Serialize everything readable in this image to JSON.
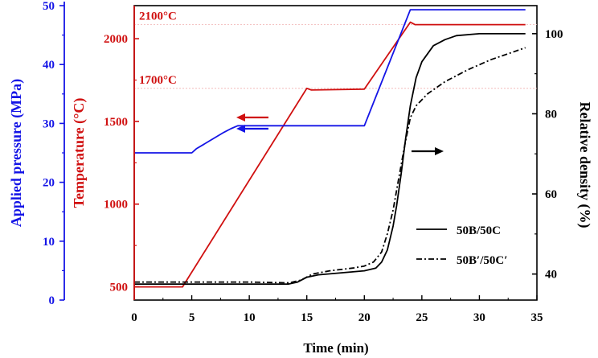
{
  "chart_data": {
    "type": "line",
    "xlabel": "Time (min)",
    "xlim": [
      0,
      35
    ],
    "xticks": [
      "0",
      "5",
      "10",
      "15",
      "20",
      "25",
      "30",
      "35"
    ],
    "axes": {
      "pressure": {
        "label": "Applied pressure (MPa)",
        "lim": [
          0,
          50
        ],
        "ticks": [
          "0",
          "10",
          "20",
          "30",
          "40",
          "50"
        ],
        "color": "#1414e6"
      },
      "temperature": {
        "label": "Temperature (°C)",
        "lim": [
          420,
          2200
        ],
        "ticks": [
          "500",
          "1000",
          "1500",
          "2000"
        ],
        "color": "#d01010"
      },
      "density": {
        "label": "Relative density (%)",
        "lim": [
          33.5,
          107
        ],
        "ticks": [
          "40",
          "60",
          "80",
          "100"
        ],
        "color": "#000000"
      }
    },
    "annotations": [
      {
        "text": "2100°C",
        "color": "#d01010",
        "temperature": 2085
      },
      {
        "text": "1700°C",
        "color": "#d01010",
        "temperature": 1700
      }
    ],
    "series": [
      {
        "name": "",
        "axis": "temperature",
        "color": "#d01010",
        "style": "solid",
        "x": [
          0,
          4.2,
          15.0,
          15.4,
          20.0,
          24.0,
          24.4,
          34
        ],
        "y": [
          500,
          500,
          1700,
          1690,
          1695,
          2100,
          2085,
          2085
        ]
      },
      {
        "name": "",
        "axis": "pressure",
        "color": "#1414e6",
        "style": "solid",
        "x": [
          0,
          5.0,
          5.4,
          6.0,
          6.6,
          7.2,
          7.8,
          8.4,
          9.0,
          20.0,
          24.0,
          24.3,
          34
        ],
        "y": [
          25,
          25,
          25.7,
          26.4,
          27.1,
          27.8,
          28.5,
          29.1,
          29.6,
          29.6,
          49.3,
          49.3,
          49.3
        ]
      },
      {
        "name": "50B/50C",
        "axis": "density",
        "color": "#000000",
        "style": "solid",
        "x": [
          0,
          13.4,
          14.2,
          15.0,
          16.0,
          18.0,
          20.0,
          21.0,
          21.5,
          22.0,
          22.5,
          22.8,
          23.2,
          23.6,
          24.0,
          24.5,
          25.0,
          26.0,
          27.0,
          28.0,
          30.0,
          34.0
        ],
        "y": [
          37.5,
          37.5,
          38.0,
          39.2,
          39.8,
          40.3,
          40.8,
          41.5,
          43.0,
          46.0,
          52.0,
          57.0,
          65.0,
          74.0,
          82.0,
          89.0,
          93.0,
          97.0,
          98.5,
          99.5,
          100.0,
          100.0
        ]
      },
      {
        "name": "50B′/50C′",
        "axis": "density",
        "color": "#000000",
        "style": "dashdot",
        "x": [
          0,
          5,
          10,
          13.5,
          14.5,
          15.5,
          17.0,
          19.0,
          20.0,
          20.8,
          21.5,
          22.0,
          22.5,
          23.0,
          23.5,
          24.0,
          24.5,
          25.5,
          27.0,
          29.0,
          31.0,
          33.0,
          34.0
        ],
        "y": [
          38.0,
          38.0,
          38.0,
          37.8,
          38.5,
          40.0,
          40.8,
          41.5,
          42.0,
          43.0,
          45.5,
          50.0,
          56.0,
          64.0,
          72.0,
          79.0,
          82.0,
          85.0,
          88.0,
          91.0,
          93.5,
          95.5,
          96.5
        ]
      }
    ],
    "legend": {
      "position": "bottom-right",
      "entries": [
        "50B/50C",
        "50B′/50C′"
      ]
    },
    "arrows": [
      {
        "color": "#d01010",
        "direction": "left",
        "points_to": "temperature"
      },
      {
        "color": "#1414e6",
        "direction": "left",
        "points_to": "pressure"
      },
      {
        "color": "#000000",
        "direction": "right",
        "points_to": "density"
      }
    ]
  }
}
